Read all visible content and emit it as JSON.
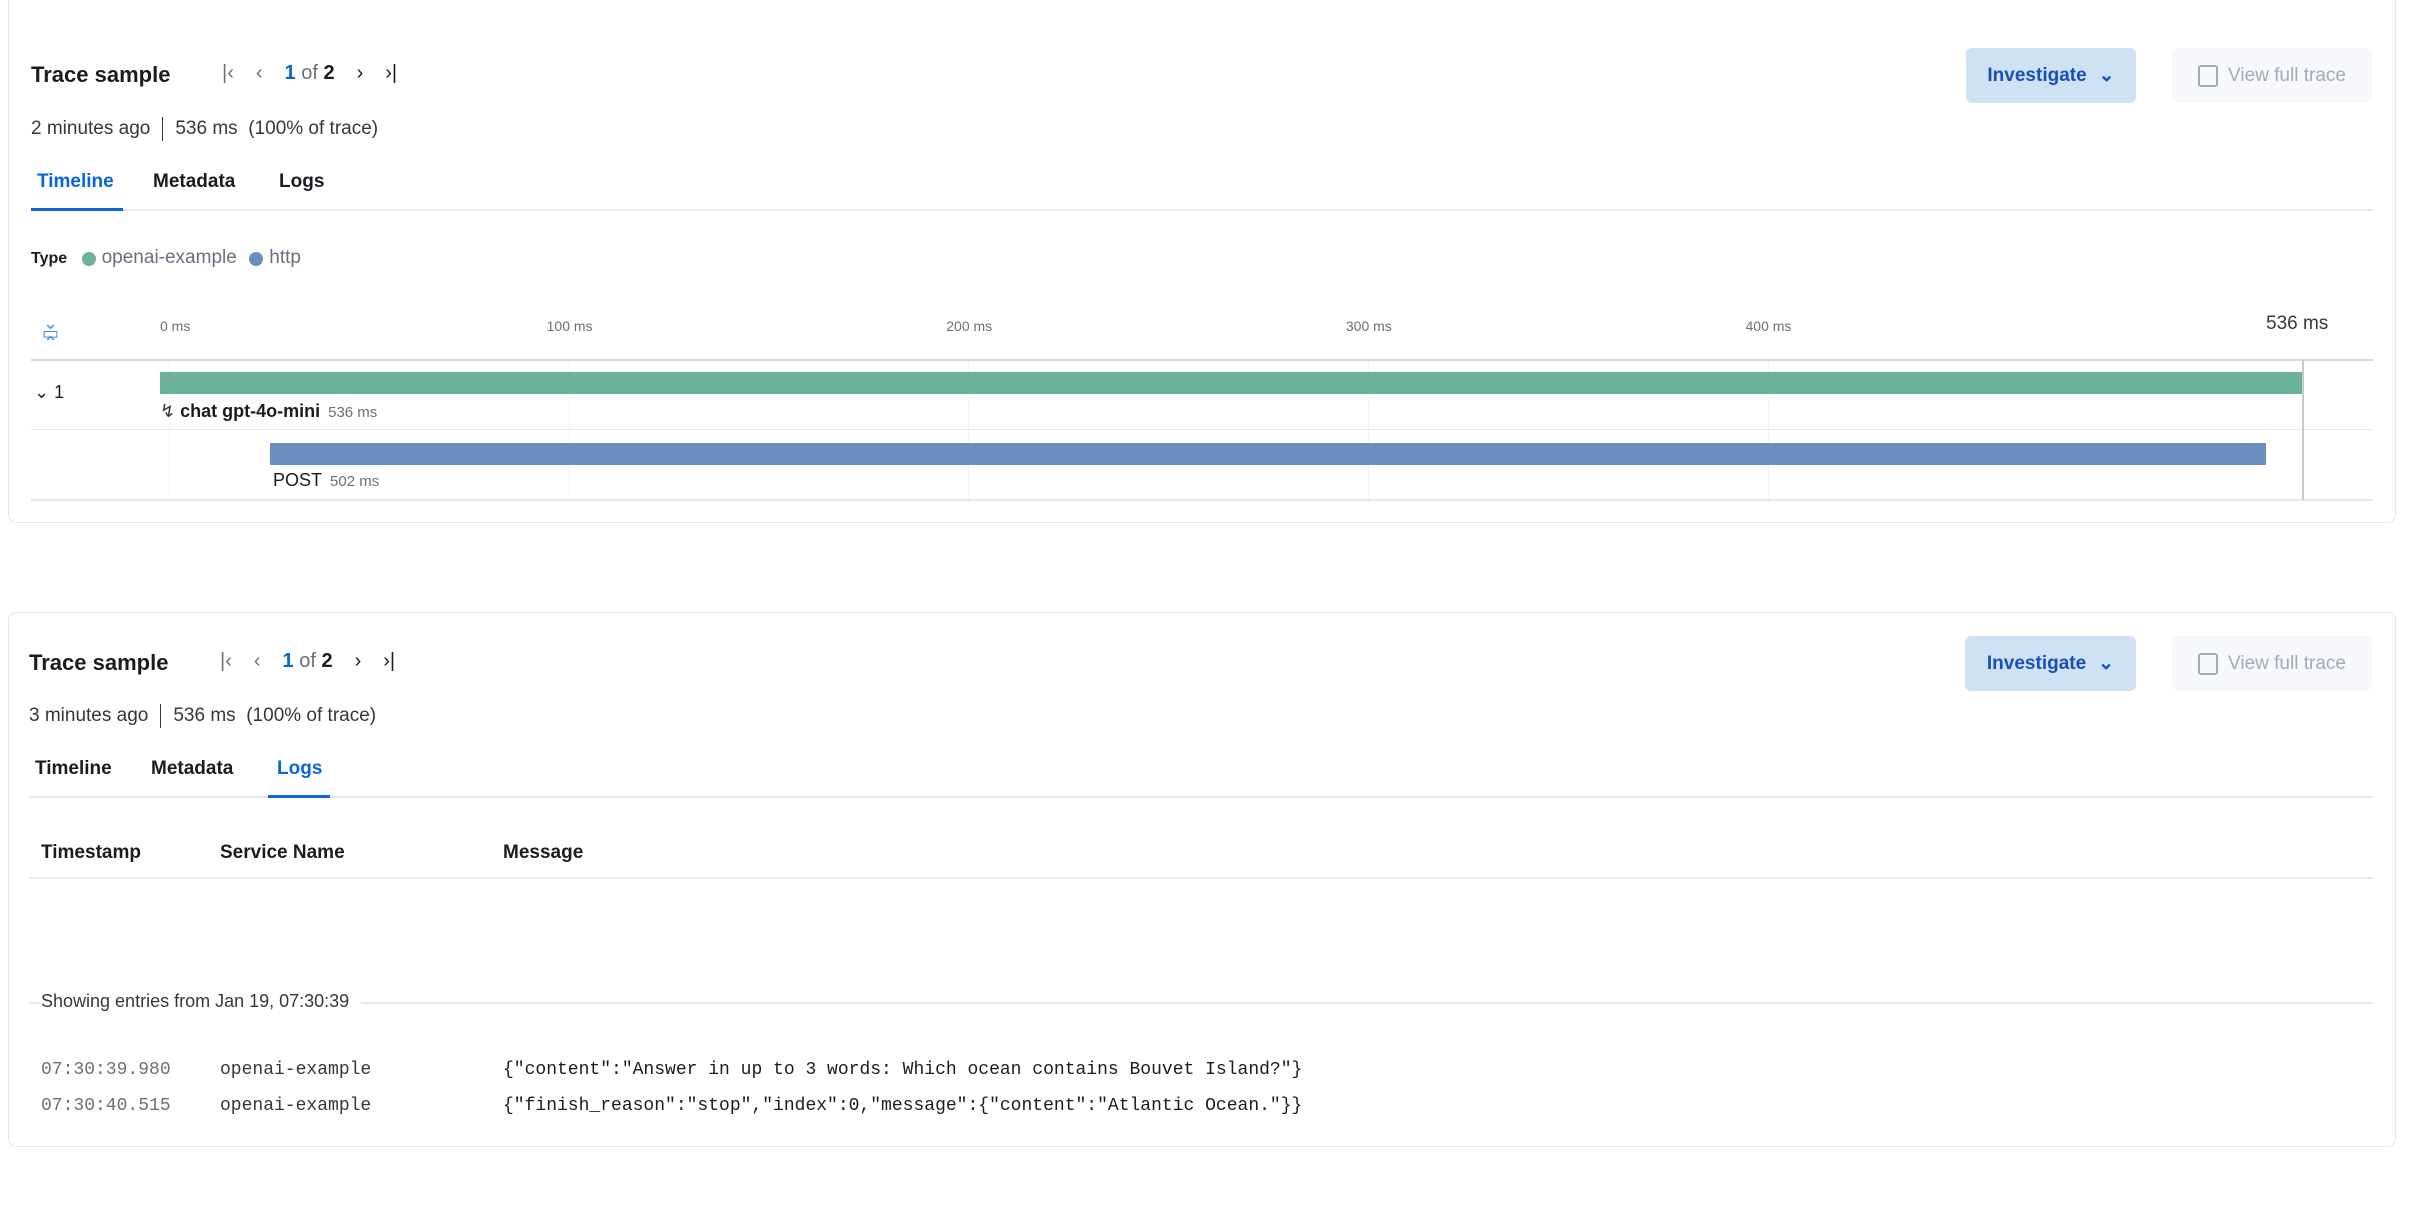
{
  "panels": [
    {
      "title": "Trace sample",
      "pagination": {
        "current": "1",
        "of": "of",
        "total": "2"
      },
      "age": "2 minutes ago",
      "duration": "536 ms",
      "percent": "(100% of trace)",
      "tabs": [
        "Timeline",
        "Metadata",
        "Logs"
      ],
      "active_tab": "Timeline",
      "investigate": "Investigate",
      "view_full_trace": "View full trace"
    },
    {
      "title": "Trace sample",
      "pagination": {
        "current": "1",
        "of": "of",
        "total": "2"
      },
      "age": "3 minutes ago",
      "duration": "536 ms",
      "percent": "(100% of trace)",
      "tabs": [
        "Timeline",
        "Metadata",
        "Logs"
      ],
      "active_tab": "Logs",
      "investigate": "Investigate",
      "view_full_trace": "View full trace"
    }
  ],
  "timeline": {
    "legend_label": "Type",
    "legend": [
      {
        "name": "openai-example",
        "color": "#6db39a"
      },
      {
        "name": "http",
        "color": "#6b8fbf"
      }
    ],
    "ticks": [
      "0 ms",
      "100 ms",
      "200 ms",
      "300 ms",
      "400 ms"
    ],
    "total": "536 ms",
    "group_label": "1",
    "spans": [
      {
        "name": "chat gpt-4o-mini",
        "duration": "536 ms",
        "start_ms": 0,
        "duration_ms": 536,
        "color": "#6db39a"
      },
      {
        "name": "POST",
        "duration": "502 ms",
        "start_ms": 25,
        "duration_ms": 502,
        "color": "#6b8fbf"
      }
    ]
  },
  "logs": {
    "columns": [
      "Timestamp",
      "Service Name",
      "Message"
    ],
    "divider": "Showing entries from Jan 19, 07:30:39",
    "rows": [
      {
        "timestamp": "07:30:39.980",
        "service": "openai-example",
        "message": "{\"content\":\"Answer in up to 3 words: Which ocean contains Bouvet Island?\"}"
      },
      {
        "timestamp": "07:30:40.515",
        "service": "openai-example",
        "message": "{\"finish_reason\":\"stop\",\"index\":0,\"message\":{\"content\":\"Atlantic Ocean.\"}}"
      }
    ]
  }
}
